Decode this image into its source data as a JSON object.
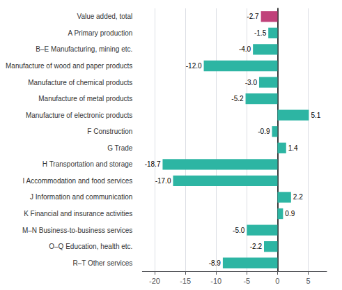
{
  "chart_data": {
    "type": "bar",
    "orientation": "horizontal",
    "categories": [
      "Value added, total",
      "A Primary production",
      "B–E Manufacturing, mining etc.",
      "Manufacture of wood and paper products",
      "Manufacture of chemical products",
      "Manufacture of metal products",
      "Manufacture of electronic products",
      "F Construction",
      "G Trade",
      "H Transportation and storage",
      "I Accommodation and food services",
      "J Information and communication",
      "K Financial and insurance activities",
      "M–N Business-to-business services",
      "O–Q Education, health etc.",
      "R–T Other services"
    ],
    "values": [
      -2.7,
      -1.5,
      -4.0,
      -12.0,
      -3.0,
      -5.2,
      5.1,
      -0.9,
      1.4,
      -18.7,
      -17.0,
      2.2,
      0.9,
      -5.0,
      -2.2,
      -8.9
    ],
    "value_labels": [
      "-2.7",
      "-1.5",
      "-4.0",
      "-12.0",
      "-3.0",
      "-5.2",
      "5.1",
      "-0.9",
      "1.4",
      "-18.7",
      "-17.0",
      "2.2",
      "0.9",
      "-5.0",
      "-2.2",
      "-8.9"
    ],
    "colors": [
      "#c0427a",
      "#2db5a3",
      "#2db5a3",
      "#2db5a3",
      "#2db5a3",
      "#2db5a3",
      "#2db5a3",
      "#2db5a3",
      "#2db5a3",
      "#2db5a3",
      "#2db5a3",
      "#2db5a3",
      "#2db5a3",
      "#2db5a3",
      "#2db5a3",
      "#2db5a3"
    ],
    "xlim": [
      -22,
      8
    ],
    "xticks": [
      -20,
      -15,
      -10,
      -5,
      0,
      5
    ],
    "grid": true,
    "data_labels": true
  }
}
